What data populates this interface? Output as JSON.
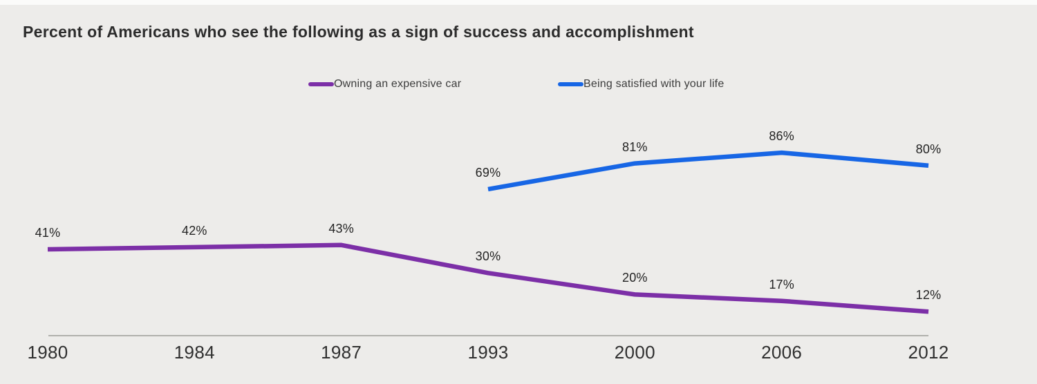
{
  "title": "Percent of Americans who see the following as a sign of success and accomplishment",
  "legend": {
    "items": [
      {
        "label": "Owning an expensive car",
        "color": "#7C2FA7"
      },
      {
        "label": "Being satisfied with your life",
        "color": "#1766E5"
      }
    ]
  },
  "chart_data": {
    "type": "line",
    "title": "Percent of Americans who see the following as a sign of success and accomplishment",
    "categories": [
      "1980",
      "1984",
      "1987",
      "1993",
      "2000",
      "2006",
      "2012"
    ],
    "series": [
      {
        "name": "Owning an expensive car",
        "color": "#7C2FA7",
        "values": [
          41,
          42,
          43,
          30,
          20,
          17,
          12
        ]
      },
      {
        "name": "Being satisfied with your life",
        "color": "#1766E5",
        "values": [
          null,
          null,
          null,
          69,
          81,
          86,
          80
        ]
      }
    ],
    "unit": "%",
    "ylim": [
      0,
      100
    ],
    "grid": false,
    "data_labels": "above-points",
    "legend_position": "top-center",
    "x_axis_line": true
  },
  "colors": {
    "background": "#EDECEA",
    "top_strip": "#FBFBFA",
    "title_text": "#2C2C2C",
    "data_label_text": "#232323",
    "axis_label_text": "#2F2F2F",
    "axis_line": "#9B9B98",
    "series_purple": "#7C2FA7",
    "series_blue": "#1766E5"
  }
}
